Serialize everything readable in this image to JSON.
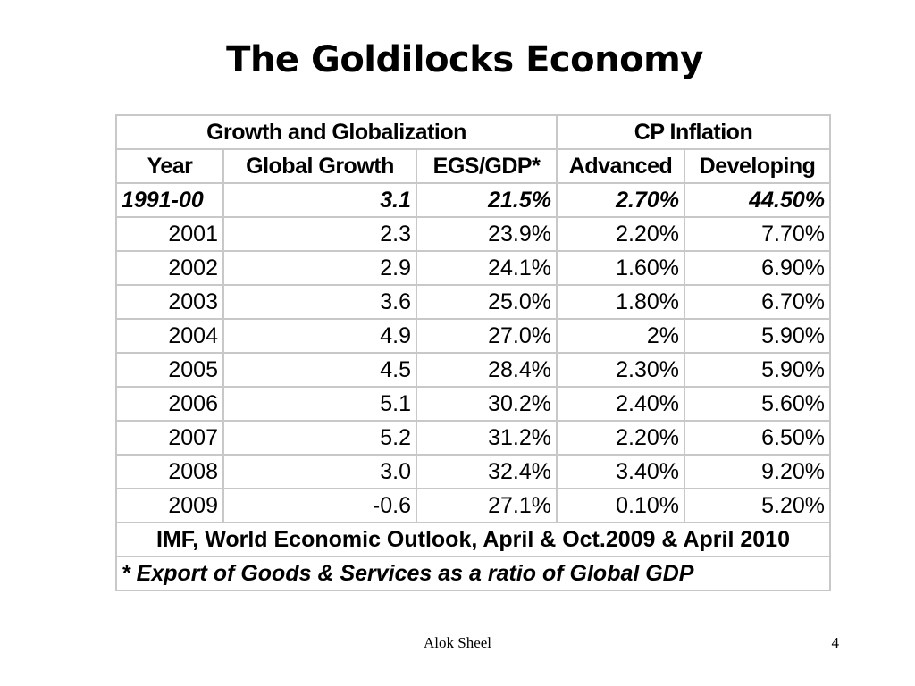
{
  "slide": {
    "title": "The Goldilocks Economy"
  },
  "table": {
    "group_headers": {
      "growth": "Growth and Globalization",
      "inflation": "CP Inflation"
    },
    "columns": [
      "Year",
      "Global Growth",
      "EGS/GDP*",
      "Advanced",
      "Developing"
    ],
    "rows": [
      [
        "1991-00",
        "3.1",
        "21.5%",
        "2.70%",
        "44.50%"
      ],
      [
        "2001",
        "2.3",
        "23.9%",
        "2.20%",
        "7.70%"
      ],
      [
        "2002",
        "2.9",
        "24.1%",
        "1.60%",
        "6.90%"
      ],
      [
        "2003",
        "3.6",
        "25.0%",
        "1.80%",
        "6.70%"
      ],
      [
        "2004",
        "4.9",
        "27.0%",
        "2%",
        "5.90%"
      ],
      [
        "2005",
        "4.5",
        "28.4%",
        "2.30%",
        "5.90%"
      ],
      [
        "2006",
        "5.1",
        "30.2%",
        "2.40%",
        "5.60%"
      ],
      [
        "2007",
        "5.2",
        "31.2%",
        "2.20%",
        "6.50%"
      ],
      [
        "2008",
        "3.0",
        "32.4%",
        "3.40%",
        "9.20%"
      ],
      [
        "2009",
        "-0.6",
        "27.1%",
        "0.10%",
        "5.20%"
      ]
    ],
    "source": "IMF, World Economic Outlook, April & Oct.2009 & April 2010",
    "note": "* Export of Goods & Services as a ratio of Global GDP"
  },
  "footer": {
    "author": "Alok Sheel",
    "page": "4"
  }
}
